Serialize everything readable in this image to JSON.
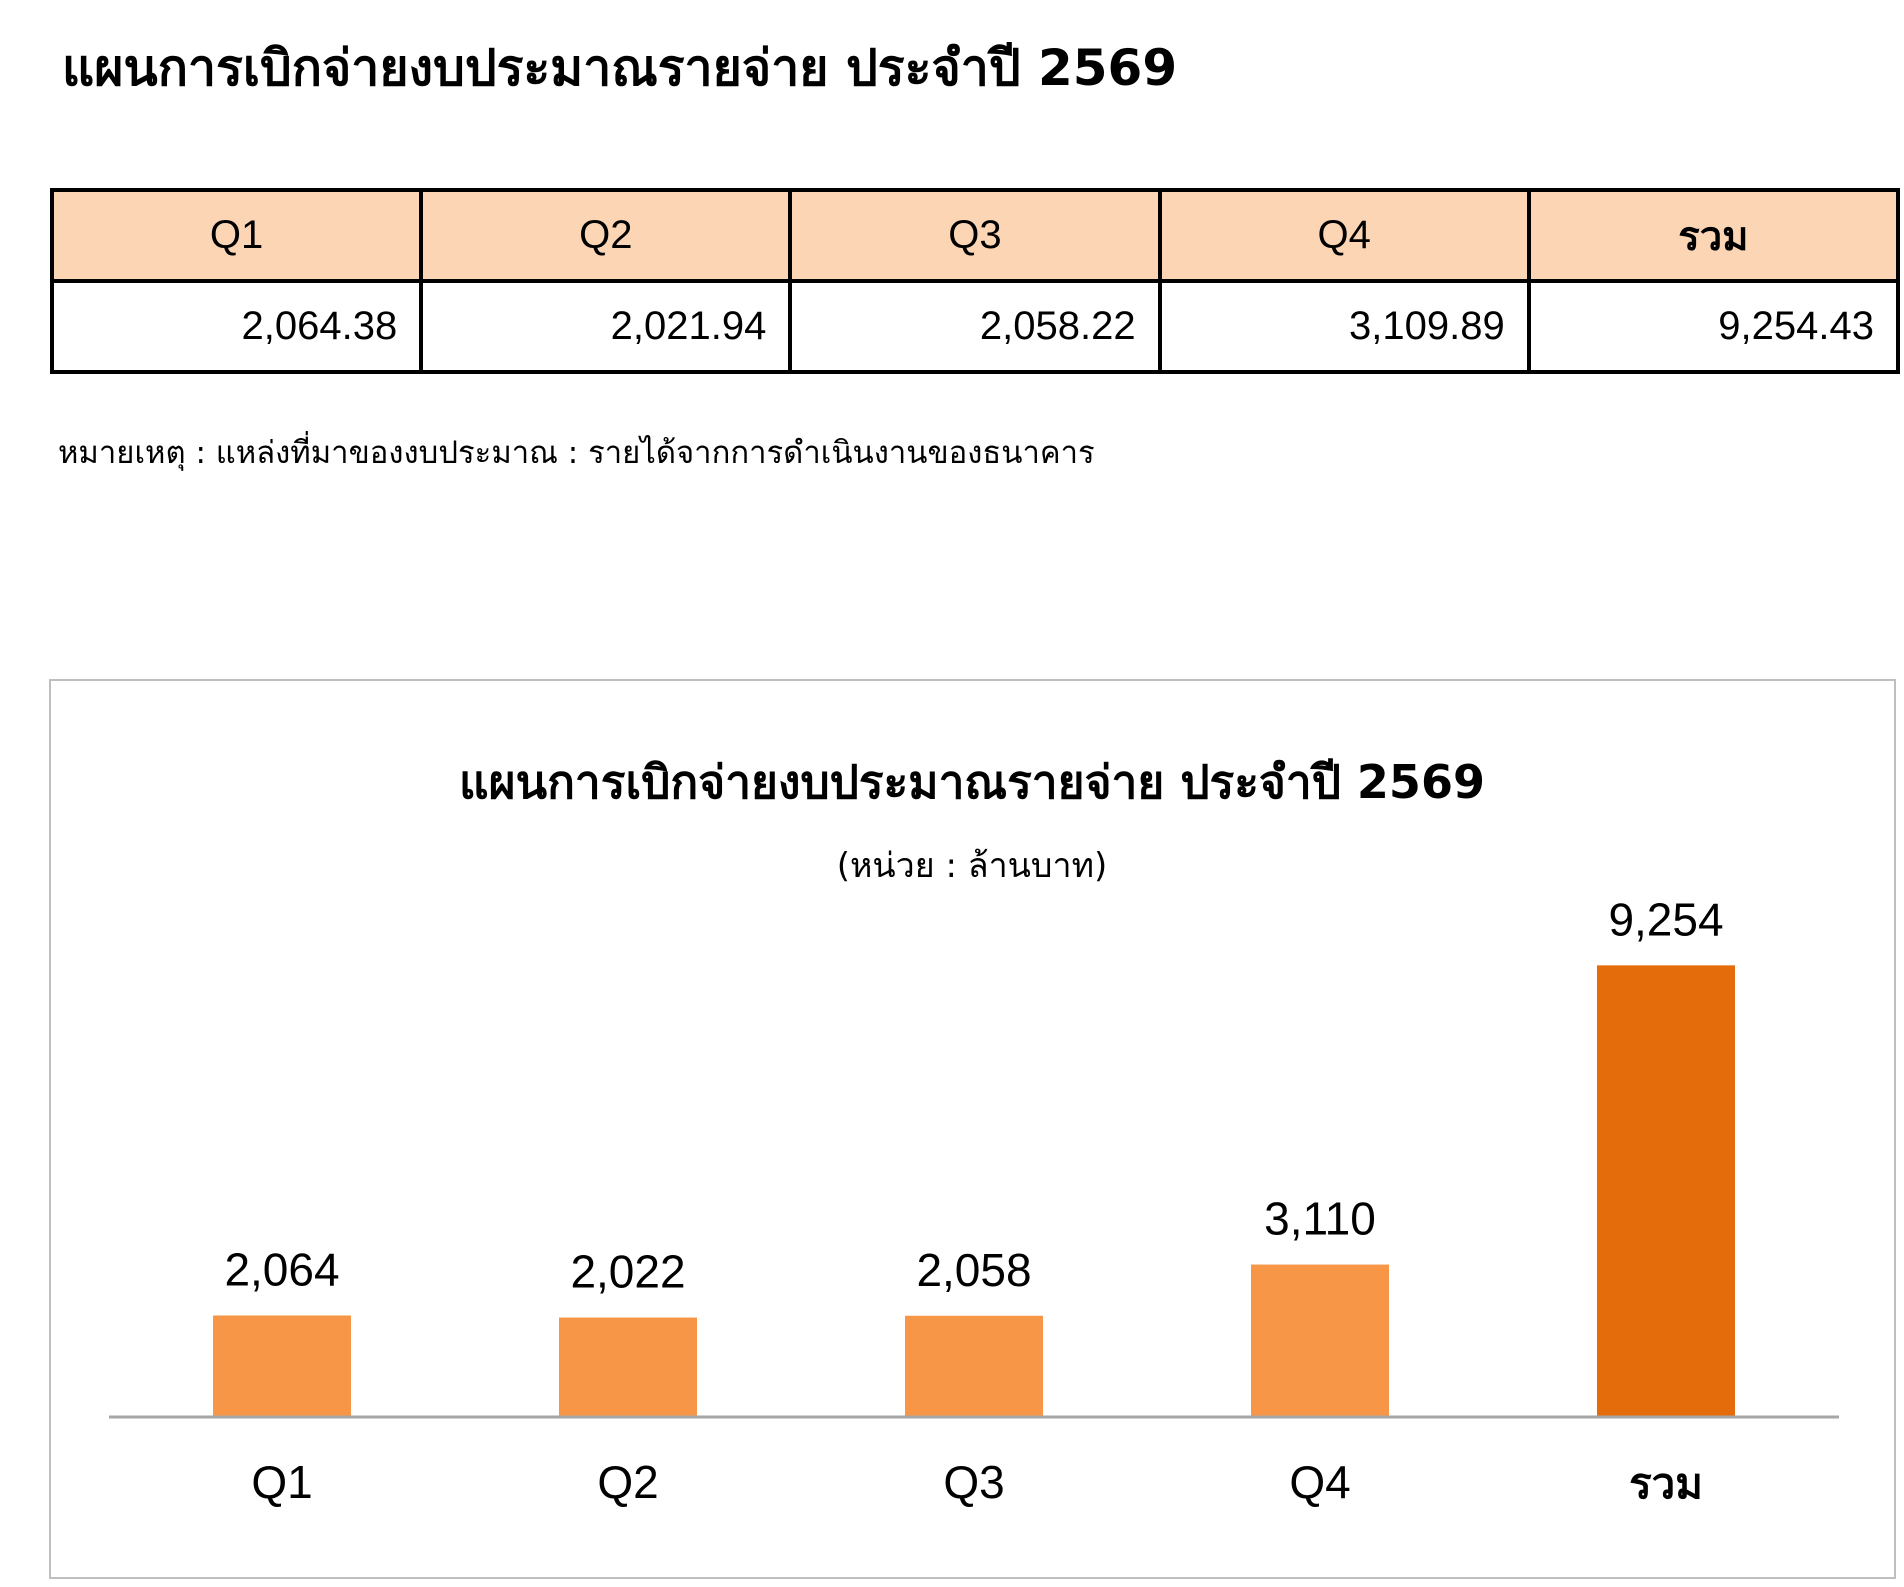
{
  "page_title": "แผนการเบิกจ่ายงบประมาณรายจ่าย ประจำปี 2569",
  "table": {
    "headers": [
      "Q1",
      "Q2",
      "Q3",
      "Q4",
      "รวม"
    ],
    "values": [
      "2,064.38",
      "2,021.94",
      "2,058.22",
      "3,109.89",
      "9,254.43"
    ]
  },
  "note": "หมายเหตุ : แหล่งที่มาของงบประมาณ : รายได้จากการดำเนินงานของธนาคาร",
  "colors": {
    "header_fill": "#fcd5b5",
    "bar_quarter": "#f79646",
    "bar_total": "#e46c0a",
    "axis_line": "#a6a6a6"
  },
  "chart_data": {
    "type": "bar",
    "title": "แผนการเบิกจ่ายงบประมาณรายจ่าย ประจำปี 2569",
    "subtitle": "(หน่วย : ล้านบาท)",
    "categories": [
      "Q1",
      "Q2",
      "Q3",
      "Q4",
      "รวม"
    ],
    "values": [
      2064.38,
      2021.94,
      2058.22,
      3109.89,
      9254.43
    ],
    "data_labels": [
      "2,064",
      "2,022",
      "2,058",
      "3,110",
      "9,254"
    ],
    "ylim": [
      0,
      11500
    ],
    "grid": false,
    "legend": "none"
  }
}
